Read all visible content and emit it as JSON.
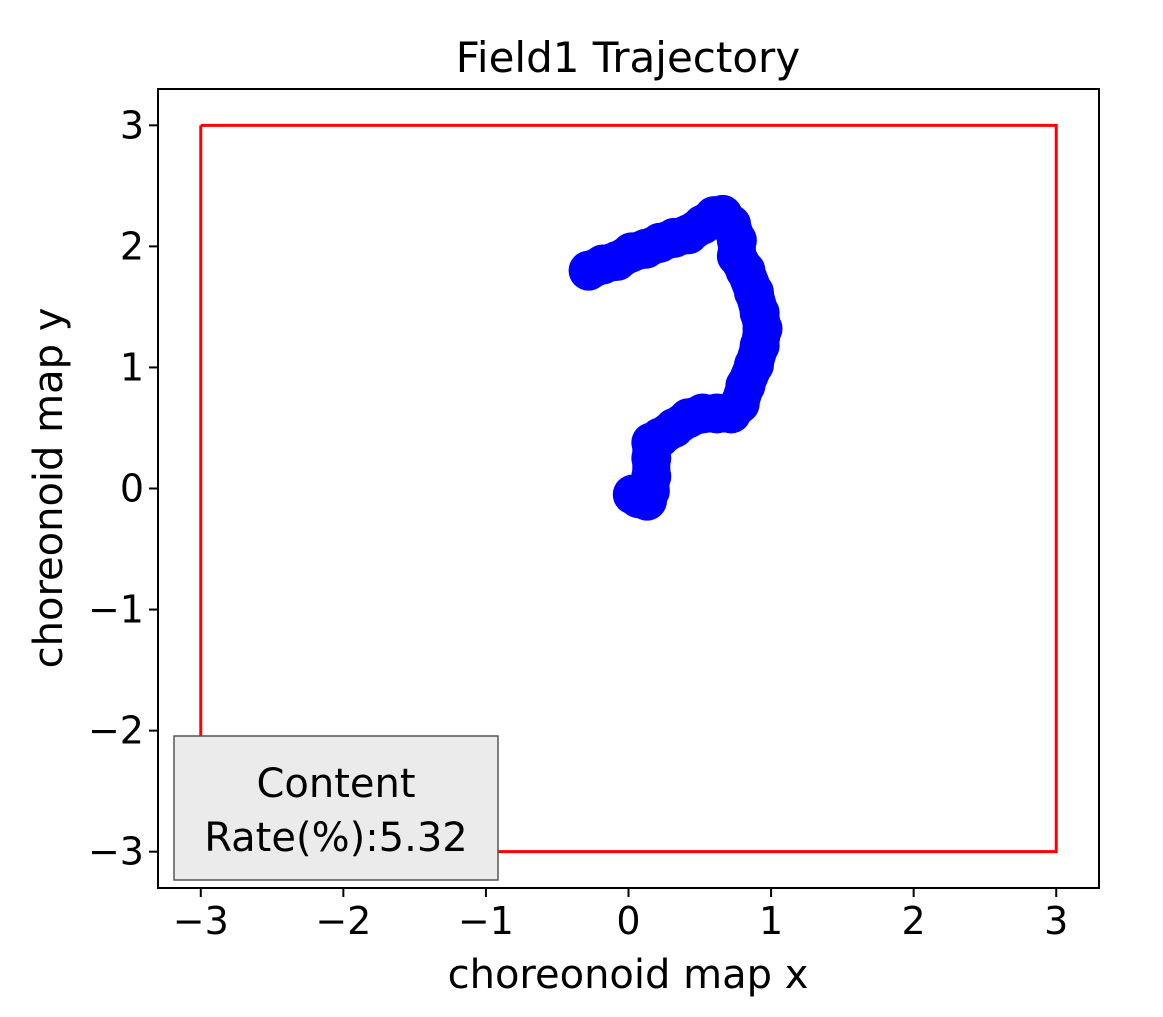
{
  "chart_data": {
    "type": "scatter",
    "title": "Field1 Trajectory",
    "xlabel": "choreonoid map x",
    "ylabel": "choreonoid map y",
    "xlim": [
      -3.3,
      3.3
    ],
    "ylim": [
      -3.3,
      3.3
    ],
    "xticks": [
      -3,
      -2,
      -1,
      0,
      1,
      2,
      3
    ],
    "xtick_labels": [
      "−3",
      "−2",
      "−1",
      "0",
      "1",
      "2",
      "3"
    ],
    "yticks": [
      -3,
      -2,
      -1,
      0,
      1,
      2,
      3
    ],
    "ytick_labels": [
      "−3",
      "−2",
      "−1",
      "0",
      "1",
      "2",
      "3"
    ],
    "grid": false,
    "boundary": {
      "color": "#ff0000",
      "x": [
        -3,
        3,
        3,
        -3,
        -3
      ],
      "y": [
        3,
        3,
        -3,
        -3,
        3
      ]
    },
    "trajectory": {
      "color": "#0000ff",
      "points": [
        [
          -0.28,
          1.8
        ],
        [
          -0.18,
          1.85
        ],
        [
          -0.08,
          1.88
        ],
        [
          0.02,
          1.95
        ],
        [
          0.12,
          1.98
        ],
        [
          0.22,
          2.03
        ],
        [
          0.32,
          2.07
        ],
        [
          0.42,
          2.1
        ],
        [
          0.52,
          2.18
        ],
        [
          0.6,
          2.25
        ],
        [
          0.66,
          2.26
        ],
        [
          0.72,
          2.18
        ],
        [
          0.76,
          2.05
        ],
        [
          0.76,
          1.92
        ],
        [
          0.82,
          1.8
        ],
        [
          0.88,
          1.62
        ],
        [
          0.92,
          1.45
        ],
        [
          0.94,
          1.32
        ],
        [
          0.92,
          1.18
        ],
        [
          0.88,
          1.02
        ],
        [
          0.82,
          0.85
        ],
        [
          0.78,
          0.7
        ],
        [
          0.72,
          0.62
        ],
        [
          0.62,
          0.62
        ],
        [
          0.52,
          0.62
        ],
        [
          0.42,
          0.58
        ],
        [
          0.32,
          0.5
        ],
        [
          0.22,
          0.42
        ],
        [
          0.16,
          0.38
        ],
        [
          0.16,
          0.25
        ],
        [
          0.16,
          0.1
        ],
        [
          0.15,
          -0.02
        ],
        [
          0.13,
          -0.1
        ],
        [
          0.07,
          -0.08
        ],
        [
          0.03,
          -0.05
        ]
      ]
    },
    "annotation": {
      "lines": [
        "Content",
        "Rate(%):5.32"
      ],
      "placement": "bottom-left",
      "background": "#ebebeb"
    }
  }
}
